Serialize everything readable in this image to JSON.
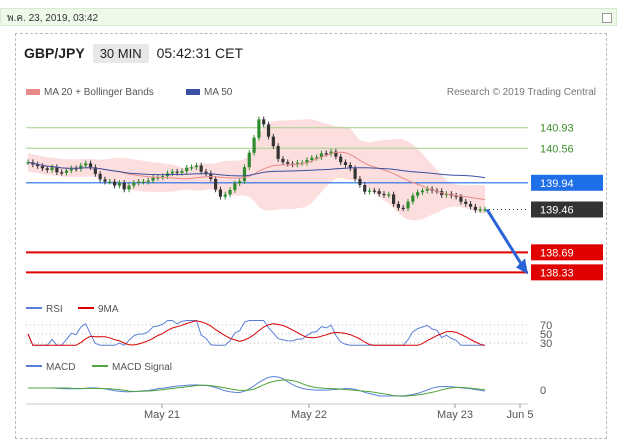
{
  "top_bar": {
    "date": "พ.ค. 23, 2019, 03:42"
  },
  "header": {
    "pair": "GBP/JPY",
    "timeframe": "30 MIN",
    "time": "05:42:31 CET"
  },
  "legend": {
    "ma20": "MA 20 + Bollinger Bands",
    "ma50": "MA 50",
    "credit": "Research © 2019 Trading Central"
  },
  "colors": {
    "ma20": "#e88a8a",
    "band_fill": "#fbd3d3",
    "ma50": "#3a4fa0",
    "green_level": "#a6d08a",
    "pivot": "#1f6fe8",
    "support": "#e00000",
    "last": "#333333",
    "rsi": "#5b7fd9",
    "rsi_ma": "#d80000",
    "macd": "#5b7fd9",
    "signal": "#4fa43c",
    "up": "#2e8b2e",
    "down": "#333333"
  },
  "chart_data": [
    {
      "type": "candlestick",
      "name": "price",
      "ylim": [
        138.2,
        141.5
      ],
      "x_ticks": [
        "May 21",
        "May 22",
        "May 23",
        "Jun 5"
      ],
      "close": [
        140.31,
        140.27,
        140.24,
        140.2,
        140.17,
        140.22,
        140.13,
        140.12,
        140.16,
        140.2,
        140.19,
        140.25,
        140.29,
        140.22,
        140.1,
        140.0,
        139.96,
        139.96,
        139.89,
        139.94,
        139.82,
        139.89,
        139.94,
        139.96,
        139.96,
        139.98,
        140.03,
        140.04,
        140.06,
        140.11,
        140.14,
        140.12,
        140.15,
        140.21,
        140.22,
        140.25,
        140.14,
        140.11,
        140.01,
        139.82,
        139.69,
        139.73,
        139.81,
        139.93,
        139.97,
        140.22,
        140.48,
        140.75,
        141.08,
        140.99,
        140.77,
        140.6,
        140.37,
        140.31,
        140.28,
        140.27,
        140.3,
        140.3,
        140.35,
        140.39,
        140.4,
        140.47,
        140.46,
        140.5,
        140.41,
        140.31,
        140.26,
        140.2,
        140.01,
        139.9,
        139.78,
        139.8,
        139.79,
        139.74,
        139.72,
        139.73,
        139.56,
        139.49,
        139.48,
        139.6,
        139.71,
        139.77,
        139.8,
        139.83,
        139.8,
        139.79,
        139.72,
        139.74,
        139.71,
        139.69,
        139.6,
        139.56,
        139.51,
        139.45,
        139.46,
        139.46
      ],
      "levels": [
        {
          "label": "140.93",
          "value": 140.93,
          "kind": "resistance"
        },
        {
          "label": "140.56",
          "value": 140.56,
          "kind": "resistance"
        },
        {
          "label": "139.94",
          "value": 139.94,
          "kind": "pivot"
        },
        {
          "label": "139.46",
          "value": 139.46,
          "kind": "last"
        },
        {
          "label": "138.69",
          "value": 138.69,
          "kind": "support"
        },
        {
          "label": "138.33",
          "value": 138.33,
          "kind": "support"
        }
      ],
      "forecast_arrow": {
        "from_value": 139.46,
        "to_value": 138.33
      }
    },
    {
      "type": "line",
      "name": "RSI",
      "legend": [
        "RSI",
        "9MA"
      ],
      "y_ticks": [
        "70",
        "50",
        "30"
      ],
      "ylim": [
        20,
        80
      ]
    },
    {
      "type": "line",
      "name": "MACD",
      "legend": [
        "MACD",
        "MACD Signal"
      ],
      "y_ticks": [
        "0"
      ]
    }
  ]
}
